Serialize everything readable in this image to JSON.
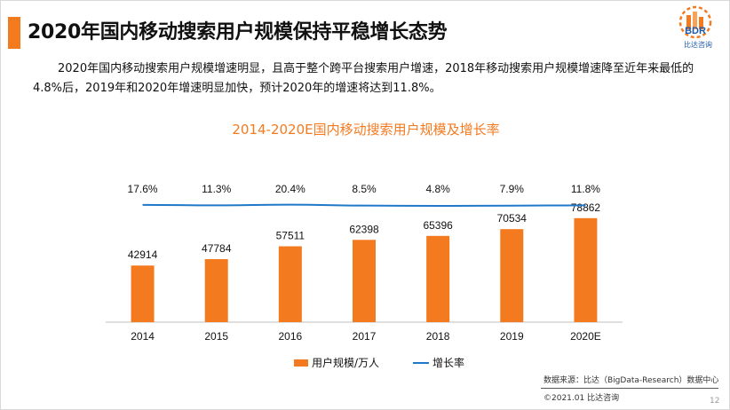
{
  "header": {
    "title": "2020年国内移动搜索用户规模保持平稳增长态势",
    "logo_text": "BDR",
    "logo_subtext": "比达咨询"
  },
  "intro": "2020年国内移动搜索用户规模增速明显，且高于整个跨平台搜索用户增速，2018年移动搜索用户规模增速降至近年来最低的4.8%后，2019年和2020年增速明显加快，预计2020年的增速将达到11.8%。",
  "colors": {
    "accent": "#f47a20",
    "line": "#1f78c8",
    "logo_blue": "#1e5aa8"
  },
  "chart_data": {
    "type": "bar",
    "title": "2014-2020E国内移动搜索用户规模及增长率",
    "categories": [
      "2014",
      "2015",
      "2016",
      "2017",
      "2018",
      "2019",
      "2020E"
    ],
    "series": [
      {
        "name": "用户规模/万人",
        "type": "bar",
        "values": [
          42914,
          47784,
          57511,
          62398,
          65396,
          70534,
          78862
        ],
        "labels": [
          "42914",
          "47784",
          "57511",
          "62398",
          "65396",
          "70534",
          "78862"
        ]
      },
      {
        "name": "增长率",
        "type": "line",
        "values": [
          17.6,
          11.3,
          20.4,
          8.5,
          4.8,
          7.9,
          11.8
        ],
        "labels": [
          "17.6%",
          "11.3%",
          "20.4%",
          "8.5%",
          "4.8%",
          "7.9%",
          "11.8%"
        ]
      }
    ],
    "legend_position": "bottom",
    "grid": false
  },
  "footer": {
    "source": "数据来源：比达（BigData-Research）数据中心",
    "copyright": "©2021.01 比达咨询",
    "page": "12"
  }
}
